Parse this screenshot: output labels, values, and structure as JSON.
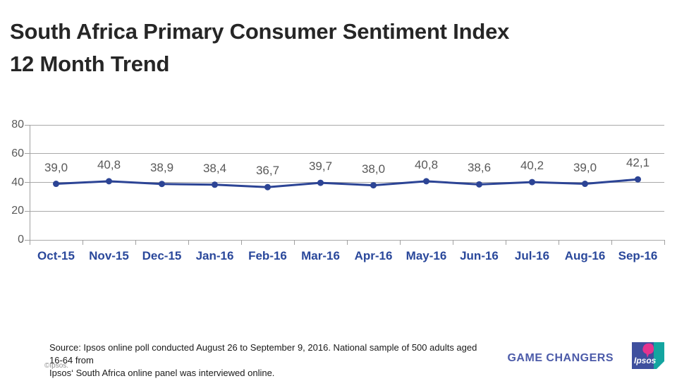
{
  "slide": {
    "title_line1": "South Africa Primary Consumer Sentiment Index",
    "title_line2": "12 Month Trend"
  },
  "chart_data": {
    "type": "line",
    "title": "South Africa Primary Consumer Sentiment Index 12 Month Trend",
    "categories": [
      "Oct-15",
      "Nov-15",
      "Dec-15",
      "Jan-16",
      "Feb-16",
      "Mar-16",
      "Apr-16",
      "May-16",
      "Jun-16",
      "Jul-16",
      "Aug-16",
      "Sep-16"
    ],
    "series": [
      {
        "name": "Primary Consumer Sentiment Index",
        "values": [
          39.0,
          40.8,
          38.9,
          38.4,
          36.7,
          39.7,
          38.0,
          40.8,
          38.6,
          40.2,
          39.0,
          42.1
        ],
        "data_labels": [
          "39,0",
          "40,8",
          "38,9",
          "38,4",
          "36,7",
          "39,7",
          "38,0",
          "40,8",
          "38,6",
          "40,2",
          "39,0",
          "42,1"
        ]
      }
    ],
    "xlabel": "",
    "ylabel": "",
    "ylim": [
      0,
      80
    ],
    "yticks": [
      0,
      20,
      40,
      60,
      80
    ],
    "grid": true,
    "legend": "none",
    "colors": {
      "line": "#2c4495",
      "marker": "#2c4495",
      "x_labels": "#2a489b",
      "data_labels": "#595959",
      "y_labels": "#595959",
      "gridline": "#a9a9a9",
      "axis": "#a0a0a0"
    }
  },
  "footer": {
    "source_line1": "Source: Ipsos online poll conducted August 26 to September 9, 2016. National sample of 500 adults aged 16-64 from",
    "source_line2": "Ipsos‘ South Africa online panel was interviewed online.",
    "copyright": "©Ipsos.",
    "game_changers": "GAME CHANGERS",
    "logo_text": "Ipsos",
    "logo_colors": {
      "indigo": "#3e4f9e",
      "teal": "#14a5a0",
      "pink": "#e5338e"
    }
  }
}
